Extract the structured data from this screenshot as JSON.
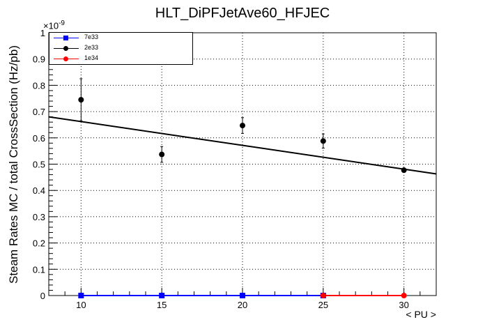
{
  "chart_data": {
    "type": "scatter",
    "title": "HLT_DiPFJetAve60_HFJEC",
    "xlabel": "< PU >",
    "ylabel": "Steam Rates MC / total CrossSection (Hz/pb)",
    "y_exponent_base": "×10",
    "y_exponent_power": "-9",
    "xlim": [
      8,
      32
    ],
    "ylim": [
      0,
      1
    ],
    "x_ticks": [
      10,
      15,
      20,
      25,
      30
    ],
    "x_tick_labels": [
      "10",
      "15",
      "20",
      "25",
      "30"
    ],
    "y_ticks": [
      0,
      0.1,
      0.2,
      0.3,
      0.4,
      0.5,
      0.6,
      0.7,
      0.8,
      0.9,
      1
    ],
    "y_tick_labels": [
      "0",
      "0.1",
      "0.2",
      "0.3",
      "0.4",
      "0.5",
      "0.6",
      "0.7",
      "0.8",
      "0.9",
      "1"
    ],
    "grid": true,
    "legend_position": "top-left",
    "series": [
      {
        "name": "7e33",
        "color": "#0000ff",
        "marker": "square",
        "points": [
          {
            "x": 10,
            "y": 0
          },
          {
            "x": 15,
            "y": 0
          },
          {
            "x": 20,
            "y": 0
          },
          {
            "x": 25,
            "y": 0
          }
        ]
      },
      {
        "name": "2e33",
        "color": "#000000",
        "marker": "circle",
        "points": [
          {
            "x": 10,
            "y": 0.745,
            "err": 0.08
          },
          {
            "x": 15,
            "y": 0.537,
            "err": 0.03
          },
          {
            "x": 20,
            "y": 0.647,
            "err": 0.03
          },
          {
            "x": 25,
            "y": 0.588,
            "err": 0.027
          },
          {
            "x": 30,
            "y": 0.477,
            "err": 0.008
          }
        ],
        "fit": {
          "x": [
            8,
            32
          ],
          "y": [
            0.68,
            0.463
          ]
        }
      },
      {
        "name": "1e34",
        "color": "#ff0000",
        "marker": "circle",
        "points": [
          {
            "x": 25,
            "y": 0
          },
          {
            "x": 30,
            "y": 0
          }
        ]
      }
    ]
  }
}
